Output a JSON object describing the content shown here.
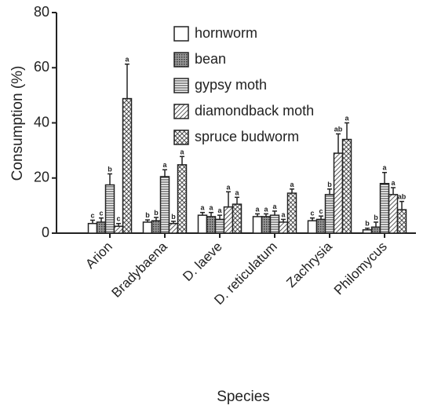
{
  "chart_data": {
    "type": "bar",
    "ylabel": "Consumption (%)",
    "xlabel": "Species",
    "categories": [
      "Arion",
      "Bradybaena",
      "D. laeve",
      "D. reticulatum",
      "Zachrysia",
      "Philomycus"
    ],
    "series": [
      {
        "name": "hornworm",
        "pattern": "blank",
        "values": [
          3.5,
          4,
          6.5,
          6,
          4.5,
          1.2
        ],
        "errors": [
          1.2,
          0.8,
          1,
          1,
          1,
          0.6
        ],
        "letters": [
          "c",
          "b",
          "a",
          "a",
          "c",
          "b"
        ]
      },
      {
        "name": "bean",
        "pattern": "dots",
        "values": [
          4,
          4.5,
          6,
          6,
          5,
          2.2
        ],
        "errors": [
          1.5,
          1.2,
          1.5,
          1,
          1.2,
          1.8
        ],
        "letters": [
          "c",
          "b",
          "a",
          "a",
          "c",
          "b"
        ]
      },
      {
        "name": "gypsy moth",
        "pattern": "horizontal",
        "values": [
          17.5,
          20.5,
          5,
          6.5,
          14,
          18
        ],
        "errors": [
          4,
          2.5,
          1.5,
          1.5,
          2,
          4
        ],
        "letters": [
          "b",
          "a",
          "a",
          "a",
          "b",
          "a"
        ]
      },
      {
        "name": "diamondback moth",
        "pattern": "diagonal",
        "values": [
          2.5,
          3.5,
          9.5,
          4,
          29,
          14
        ],
        "errors": [
          1,
          0.8,
          5.5,
          1,
          7,
          2.5
        ],
        "letters": [
          "c",
          "b",
          "a",
          "a",
          "ab",
          "a"
        ]
      },
      {
        "name": "spruce budworm",
        "pattern": "lattice",
        "values": [
          48.8,
          24.8,
          10.5,
          14.5,
          34,
          8.5
        ],
        "errors": [
          12.5,
          3,
          2.5,
          1.5,
          6,
          3
        ],
        "letters": [
          "a",
          "a",
          "a",
          "a",
          "a",
          "ab"
        ]
      }
    ],
    "ylim": [
      0,
      80
    ],
    "yticks": [
      0,
      20,
      40,
      60,
      80
    ],
    "grid": false,
    "legend": "top"
  }
}
